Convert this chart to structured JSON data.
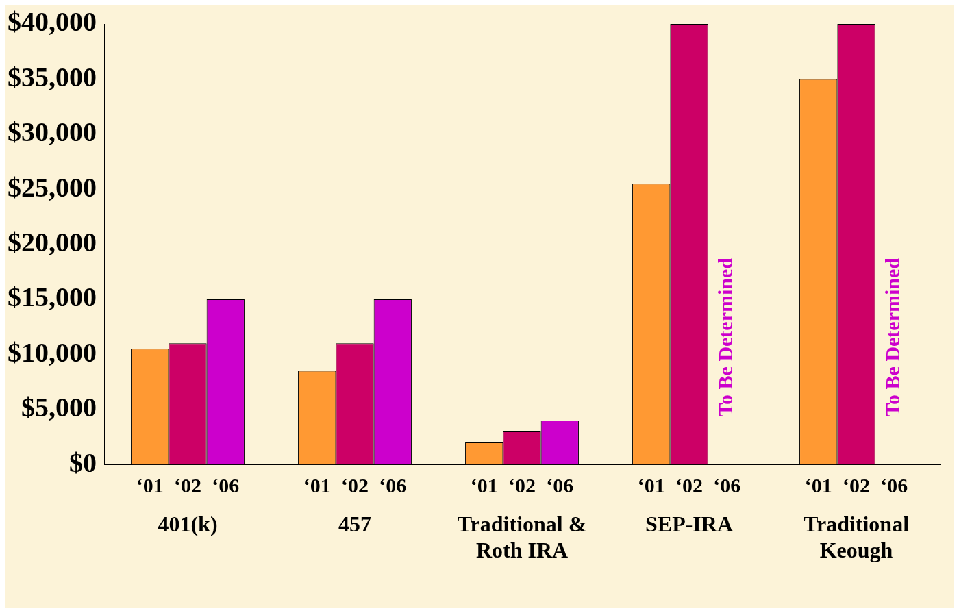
{
  "chart_data": {
    "type": "bar",
    "categories": [
      "401(k)",
      "457",
      "Traditional & Roth IRA",
      "SEP-IRA",
      "Traditional Keough"
    ],
    "series": [
      {
        "name": "‘01",
        "color": "#ff9933",
        "values": [
          10500,
          8500,
          2000,
          25500,
          35000
        ]
      },
      {
        "name": "‘02",
        "color": "#cc0066",
        "values": [
          11000,
          11000,
          3000,
          40000,
          40000
        ]
      },
      {
        "name": "‘06",
        "color": "#cc00cc",
        "values": [
          15000,
          15000,
          4000,
          null,
          null
        ]
      }
    ],
    "ylim": [
      0,
      40000
    ],
    "yticks": [
      {
        "value": 0,
        "label": "$0"
      },
      {
        "value": 5000,
        "label": "$5,000"
      },
      {
        "value": 10000,
        "label": "$10,000"
      },
      {
        "value": 15000,
        "label": "$15,000"
      },
      {
        "value": 20000,
        "label": "$20,000"
      },
      {
        "value": 25000,
        "label": "$25,000"
      },
      {
        "value": 30000,
        "label": "$30,000"
      },
      {
        "value": 35000,
        "label": "$35,000"
      },
      {
        "value": 40000,
        "label": "$40,000"
      }
    ],
    "grid": false,
    "legend": false,
    "annotations": [
      "To Be Determined",
      "To Be Determined"
    ]
  }
}
